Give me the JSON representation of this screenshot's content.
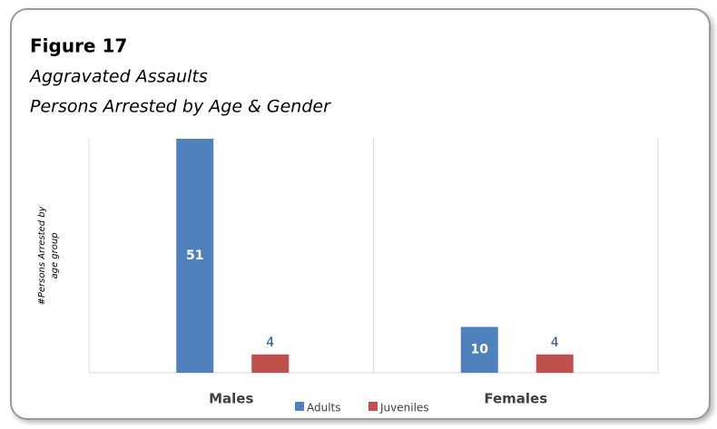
{
  "chart_data": {
    "type": "bar",
    "title": "Figure 17",
    "subtitle": [
      "Aggravated Assaults",
      "Persons Arrested by Age & Gender"
    ],
    "y_label": [
      "#Persons Arrested by",
      "age group"
    ],
    "categories": [
      "Males",
      "Females"
    ],
    "series": [
      {
        "name": "Adults",
        "color": "#4f81bd",
        "values": [
          51,
          10
        ]
      },
      {
        "name": "Juveniles",
        "color": "#c0504d",
        "values": [
          4,
          4
        ]
      }
    ],
    "ylim": [
      0,
      51
    ],
    "legend": "bottom"
  }
}
